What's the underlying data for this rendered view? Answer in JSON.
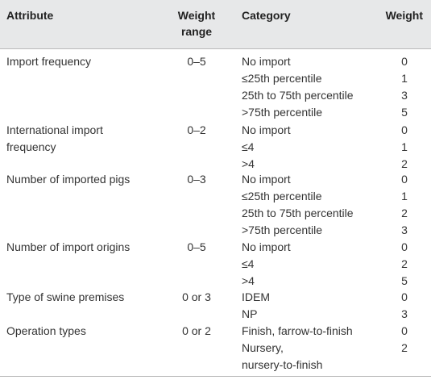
{
  "headers": {
    "attribute": "Attribute",
    "weight_range_1": "Weight",
    "weight_range_2": "range",
    "category": "Category",
    "weight": "Weight"
  },
  "rows": [
    {
      "attribute": [
        "Import frequency"
      ],
      "range": "0–5",
      "categories": [
        "No import",
        "≤25th percentile",
        "25th to 75th percentile",
        ">75th percentile"
      ],
      "weights": [
        "0",
        "1",
        "3",
        "5"
      ]
    },
    {
      "attribute": [
        "International import",
        "frequency"
      ],
      "range": "0–2",
      "categories": [
        "No import",
        "≤4",
        ">4"
      ],
      "weights": [
        "0",
        "1",
        "2"
      ]
    },
    {
      "attribute": [
        "Number of imported pigs"
      ],
      "range": "0–3",
      "categories": [
        "No import",
        "≤25th percentile",
        "25th to 75th percentile",
        ">75th percentile"
      ],
      "weights": [
        "0",
        "1",
        "2",
        "3"
      ]
    },
    {
      "attribute": [
        "Number of import origins"
      ],
      "range": "0–5",
      "categories": [
        "No import",
        "≤4",
        ">4"
      ],
      "weights": [
        "0",
        "2",
        "5"
      ]
    },
    {
      "attribute": [
        "Type of swine premises"
      ],
      "range": "0 or 3",
      "categories": [
        "IDEM",
        "NP"
      ],
      "weights": [
        "0",
        "3"
      ]
    },
    {
      "attribute": [
        "Operation types"
      ],
      "range": "0 or 2",
      "categories": [
        "Finish, farrow-to-finish",
        "Nursery,",
        "nursery-to-finish"
      ],
      "weights": [
        "0",
        "2",
        ""
      ]
    }
  ]
}
